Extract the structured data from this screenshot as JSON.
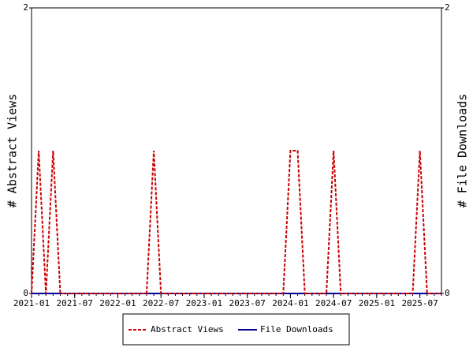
{
  "chart_data": {
    "type": "line",
    "x": [
      "2021-01",
      "2021-02",
      "2021-03",
      "2021-04",
      "2021-05",
      "2021-06",
      "2021-07",
      "2021-08",
      "2021-09",
      "2021-10",
      "2021-11",
      "2021-12",
      "2022-01",
      "2022-02",
      "2022-03",
      "2022-04",
      "2022-05",
      "2022-06",
      "2022-07",
      "2022-08",
      "2022-09",
      "2022-10",
      "2022-11",
      "2022-12",
      "2023-01",
      "2023-02",
      "2023-03",
      "2023-04",
      "2023-05",
      "2023-06",
      "2023-07",
      "2023-08",
      "2023-09",
      "2023-10",
      "2023-11",
      "2023-12",
      "2024-01",
      "2024-02",
      "2024-03",
      "2024-04",
      "2024-05",
      "2024-06",
      "2024-07",
      "2024-08",
      "2024-09",
      "2024-10",
      "2024-11",
      "2024-12",
      "2025-01",
      "2025-02",
      "2025-03",
      "2025-04",
      "2025-05",
      "2025-06",
      "2025-07",
      "2025-08",
      "2025-09",
      "2025-10"
    ],
    "xlim": [
      "2021-01",
      "2025-10"
    ],
    "xticks": [
      "2021-01",
      "2021-07",
      "2022-01",
      "2022-07",
      "2023-01",
      "2023-07",
      "2024-01",
      "2024-07",
      "2025-01",
      "2025-07"
    ],
    "ylabel": "# Abstract Views",
    "y2label": "# File Downloads",
    "ylim": [
      0,
      2
    ],
    "yticks": [
      0,
      2
    ],
    "y2lim": [
      0,
      2
    ],
    "y2ticks": [
      0,
      2
    ],
    "legend": "bottom",
    "series": [
      {
        "name": "Abstract Views",
        "color": "#cc0000",
        "dash": true,
        "values": [
          0,
          1,
          0,
          1,
          0,
          0,
          0,
          0,
          0,
          0,
          0,
          0,
          0,
          0,
          0,
          0,
          0,
          1,
          0,
          0,
          0,
          0,
          0,
          0,
          0,
          0,
          0,
          0,
          0,
          0,
          0,
          0,
          0,
          0,
          0,
          0,
          1,
          1,
          0,
          0,
          0,
          0,
          1,
          0,
          0,
          0,
          0,
          0,
          0,
          0,
          0,
          0,
          0,
          0,
          1,
          0,
          0,
          0
        ]
      },
      {
        "name": "File Downloads",
        "color": "#000099",
        "axis": "y2",
        "values": [
          0,
          0,
          0,
          0,
          0,
          0,
          0,
          0,
          0,
          0,
          0,
          0,
          0,
          0,
          0,
          0,
          0,
          0,
          0,
          0,
          0,
          0,
          0,
          0,
          0,
          0,
          0,
          0,
          0,
          0,
          0,
          0,
          0,
          0,
          0,
          0,
          0,
          0,
          0,
          0,
          0,
          0,
          0,
          0,
          0,
          0,
          0,
          0,
          0,
          0,
          0,
          0,
          0,
          0,
          0,
          0,
          0,
          0
        ]
      }
    ]
  }
}
